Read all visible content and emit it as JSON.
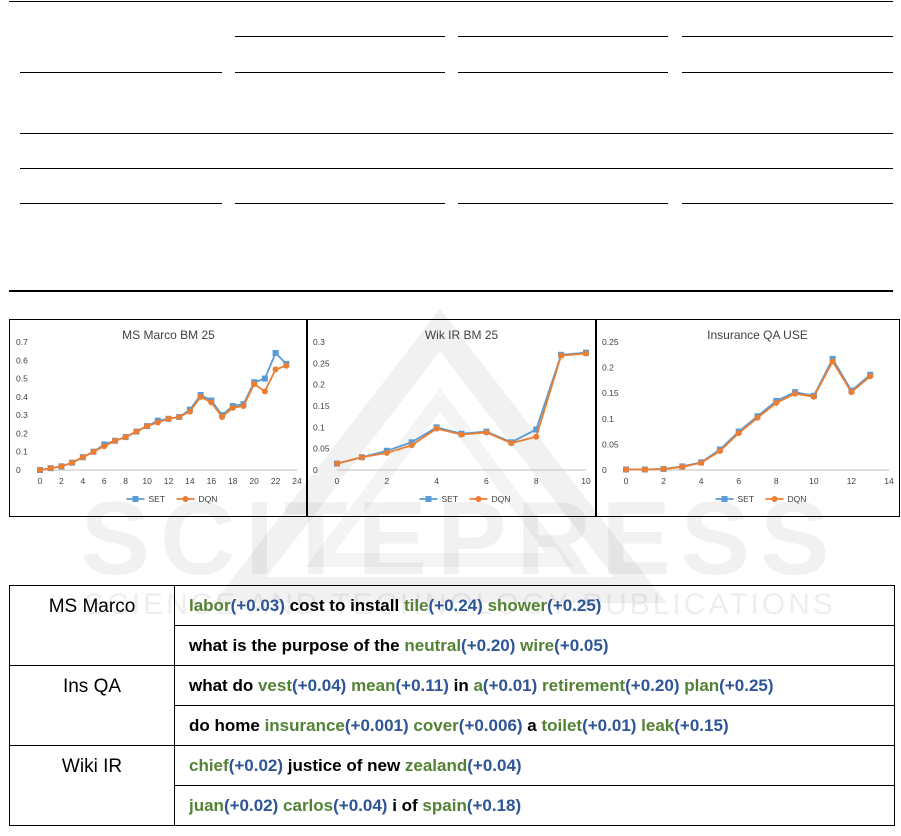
{
  "charts": [
    {
      "type": "line",
      "title": "MS Marco BM 25",
      "x": [
        0,
        1,
        2,
        3,
        4,
        5,
        6,
        7,
        8,
        9,
        10,
        11,
        12,
        13,
        14,
        15,
        16,
        17,
        18,
        19,
        20,
        21,
        22,
        23
      ],
      "xticks": [
        0,
        2,
        4,
        6,
        8,
        10,
        12,
        14,
        16,
        18,
        20,
        22,
        24
      ],
      "xlim": [
        0,
        24
      ],
      "ylim": [
        0,
        0.7
      ],
      "yticks": [
        "0",
        "0.1",
        "0.2",
        "0.3",
        "0.4",
        "0.5",
        "0.6",
        "0.7"
      ],
      "series": [
        {
          "name": "SET",
          "color": "#5b9bd5",
          "marker": "square",
          "values": [
            0.0,
            0.01,
            0.02,
            0.04,
            0.07,
            0.1,
            0.14,
            0.16,
            0.18,
            0.21,
            0.24,
            0.27,
            0.28,
            0.29,
            0.33,
            0.41,
            0.38,
            0.3,
            0.35,
            0.36,
            0.48,
            0.5,
            0.64,
            0.58
          ]
        },
        {
          "name": "DQN",
          "color": "#ed7d31",
          "marker": "circle",
          "values": [
            0.0,
            0.01,
            0.02,
            0.04,
            0.07,
            0.1,
            0.13,
            0.16,
            0.18,
            0.21,
            0.24,
            0.26,
            0.28,
            0.29,
            0.32,
            0.4,
            0.37,
            0.29,
            0.34,
            0.35,
            0.47,
            0.43,
            0.55,
            0.57
          ]
        }
      ]
    },
    {
      "type": "line",
      "title": "Wik IR BM 25",
      "x": [
        0,
        1,
        2,
        3,
        4,
        5,
        6,
        7,
        8,
        9,
        10
      ],
      "xticks": [
        0,
        2,
        4,
        6,
        8,
        10
      ],
      "xlim": [
        0,
        10
      ],
      "ylim": [
        0,
        0.3
      ],
      "yticks": [
        "0",
        "0.05",
        "0.1",
        "0.15",
        "0.2",
        "0.25",
        "0.3"
      ],
      "series": [
        {
          "name": "SET",
          "color": "#5b9bd5",
          "marker": "square",
          "values": [
            0.015,
            0.03,
            0.045,
            0.065,
            0.1,
            0.085,
            0.09,
            0.065,
            0.095,
            0.27,
            0.275
          ]
        },
        {
          "name": "DQN",
          "color": "#ed7d31",
          "marker": "circle",
          "values": [
            0.015,
            0.03,
            0.04,
            0.058,
            0.097,
            0.083,
            0.088,
            0.063,
            0.078,
            0.268,
            0.273
          ]
        }
      ]
    },
    {
      "type": "line",
      "title": "Insurance QA USE",
      "x": [
        0,
        1,
        2,
        3,
        4,
        5,
        6,
        7,
        8,
        9,
        10,
        11,
        12,
        13
      ],
      "xticks": [
        0,
        2,
        4,
        6,
        8,
        10,
        12,
        14
      ],
      "xlim": [
        0,
        14
      ],
      "ylim": [
        0,
        0.25
      ],
      "yticks": [
        "0",
        "0.05",
        "0.1",
        "0.15",
        "0.2",
        "0.25"
      ],
      "series": [
        {
          "name": "SET",
          "color": "#5b9bd5",
          "marker": "square",
          "values": [
            0.001,
            0.001,
            0.002,
            0.007,
            0.015,
            0.04,
            0.075,
            0.105,
            0.135,
            0.152,
            0.145,
            0.217,
            0.155,
            0.186
          ]
        },
        {
          "name": "DQN",
          "color": "#ed7d31",
          "marker": "circle",
          "values": [
            0.001,
            0.001,
            0.002,
            0.006,
            0.014,
            0.037,
            0.072,
            0.102,
            0.131,
            0.149,
            0.143,
            0.212,
            0.152,
            0.183
          ]
        }
      ]
    }
  ],
  "legend": {
    "set_label": "SET",
    "dqn_label": "DQN"
  },
  "colors": {
    "word_green": "#548235",
    "score_blue": "#2e5597"
  },
  "watermark": {
    "main": "SCITEPRESS",
    "sub": "SCIENCE AND TECHNOLOGY PUBLICATIONS"
  },
  "examples": [
    {
      "dataset": "MS Marco",
      "queries": [
        [
          {
            "t": "labor",
            "c": "green"
          },
          {
            "t": "(+0.03)",
            "c": "blue"
          },
          {
            "t": " cost to install ",
            "c": "black"
          },
          {
            "t": "tile",
            "c": "green"
          },
          {
            "t": "(+0.24)",
            "c": "blue"
          },
          {
            "t": " ",
            "c": "black"
          },
          {
            "t": "shower",
            "c": "green"
          },
          {
            "t": "(+0.25)",
            "c": "blue"
          }
        ],
        [
          {
            "t": "what is the purpose of the ",
            "c": "black"
          },
          {
            "t": "neutral",
            "c": "green"
          },
          {
            "t": "(+0.20)",
            "c": "blue"
          },
          {
            "t": " ",
            "c": "black"
          },
          {
            "t": "wire",
            "c": "green"
          },
          {
            "t": "(+0.05)",
            "c": "blue"
          }
        ]
      ]
    },
    {
      "dataset": "Ins QA",
      "queries": [
        [
          {
            "t": "what do ",
            "c": "black"
          },
          {
            "t": "vest",
            "c": "green"
          },
          {
            "t": "(+0.04)",
            "c": "blue"
          },
          {
            "t": " ",
            "c": "black"
          },
          {
            "t": "mean",
            "c": "green"
          },
          {
            "t": "(+0.11)",
            "c": "blue"
          },
          {
            "t": " in ",
            "c": "black"
          },
          {
            "t": "a",
            "c": "green"
          },
          {
            "t": "(+0.01)",
            "c": "blue"
          },
          {
            "t": " ",
            "c": "black"
          },
          {
            "t": "retirement",
            "c": "green"
          },
          {
            "t": "(+0.20)",
            "c": "blue"
          },
          {
            "t": " ",
            "c": "black"
          },
          {
            "t": "plan",
            "c": "green"
          },
          {
            "t": "(+0.25)",
            "c": "blue"
          }
        ],
        [
          {
            "t": "do home ",
            "c": "black"
          },
          {
            "t": "insurance",
            "c": "green"
          },
          {
            "t": "(+0.001)",
            "c": "blue"
          },
          {
            "t": " ",
            "c": "black"
          },
          {
            "t": "cover",
            "c": "green"
          },
          {
            "t": "(+0.006)",
            "c": "blue"
          },
          {
            "t": " a ",
            "c": "black"
          },
          {
            "t": "toilet",
            "c": "green"
          },
          {
            "t": "(+0.01)",
            "c": "blue"
          },
          {
            "t": " ",
            "c": "black"
          },
          {
            "t": "leak",
            "c": "green"
          },
          {
            "t": "(+0.15)",
            "c": "blue"
          }
        ]
      ]
    },
    {
      "dataset": "Wiki IR",
      "queries": [
        [
          {
            "t": "chief",
            "c": "green"
          },
          {
            "t": "(+0.02)",
            "c": "blue"
          },
          {
            "t": " justice of new ",
            "c": "black"
          },
          {
            "t": "zealand",
            "c": "green"
          },
          {
            "t": "(+0.04)",
            "c": "blue"
          }
        ],
        [
          {
            "t": "juan",
            "c": "green"
          },
          {
            "t": "(+0.02)",
            "c": "blue"
          },
          {
            "t": " ",
            "c": "black"
          },
          {
            "t": "carlos",
            "c": "green"
          },
          {
            "t": "(+0.04)",
            "c": "blue"
          },
          {
            "t": " i of ",
            "c": "black"
          },
          {
            "t": "spain",
            "c": "green"
          },
          {
            "t": "(+0.18)",
            "c": "blue"
          }
        ]
      ]
    }
  ]
}
